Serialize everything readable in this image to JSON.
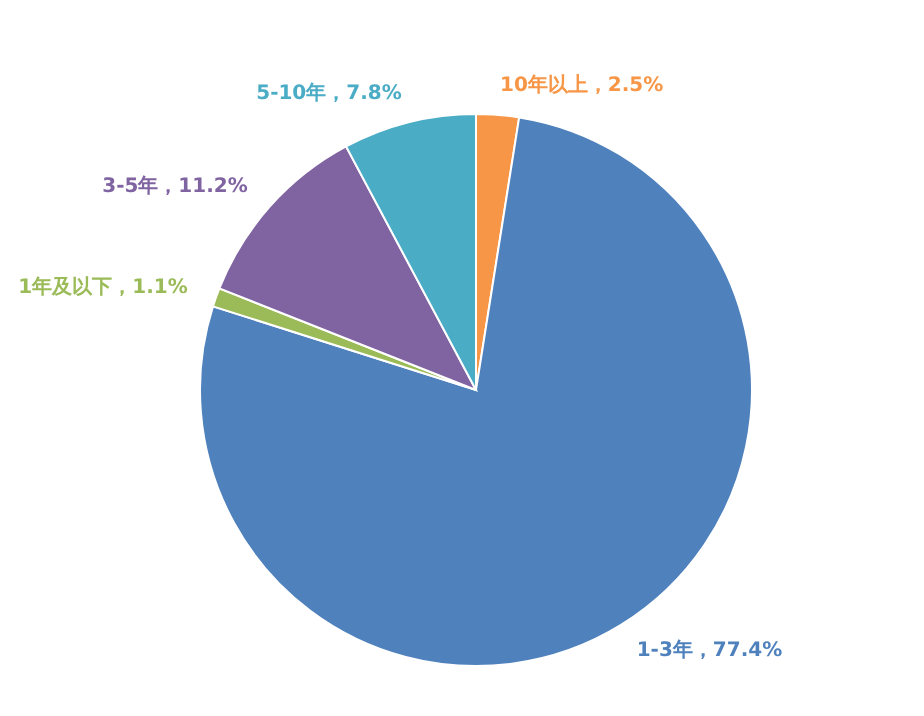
{
  "chart_data": {
    "type": "pie",
    "categories": [
      "10年以上",
      "1-3年",
      "1年及以下",
      "3-5年",
      "5-10年"
    ],
    "values": [
      2.5,
      77.4,
      1.1,
      11.2,
      7.8
    ],
    "value_labels": [
      "2.5%",
      "77.4%",
      "1.1%",
      "11.2%",
      "7.8%"
    ],
    "colors": [
      "#f79646",
      "#4f81bd",
      "#9bbb59",
      "#8064a2",
      "#4bacc6"
    ]
  }
}
